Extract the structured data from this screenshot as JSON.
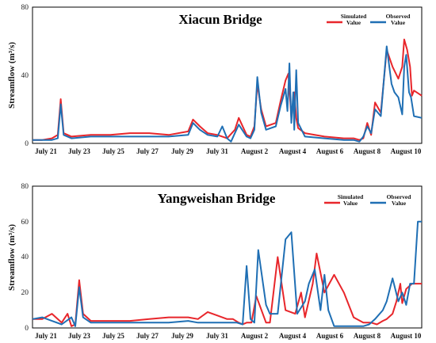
{
  "chart_data": [
    {
      "type": "line",
      "title": "Xiacun Bridge",
      "ylabel": "Streamflow (m³/s)",
      "xlabel": "",
      "ylim": [
        0,
        80
      ],
      "yticks": [
        "0",
        "40",
        "80"
      ],
      "xlim": [
        21,
        41
      ],
      "x_tick_labels": [
        "July 21",
        "July 23",
        "July 25",
        "July 27",
        "July 29",
        "July 31",
        "August 2",
        "August 4",
        "August 6",
        "August 8",
        "August 10"
      ],
      "legend_position": "top-right",
      "grid": false,
      "series": [
        {
          "name": "Simulated Value",
          "color": "#e8262b",
          "x": [
            21,
            21.5,
            22,
            22.3,
            22.45,
            22.6,
            23,
            24,
            25,
            26,
            27,
            28,
            29,
            29.25,
            29.6,
            30,
            30.5,
            31,
            31.4,
            31.6,
            32,
            32.2,
            32.4,
            32.55,
            32.75,
            33,
            33.5,
            33.75,
            34,
            34.15,
            34.3,
            34.45,
            34.55,
            34.65,
            35,
            36,
            37,
            37.5,
            37.8,
            38,
            38.2,
            38.4,
            38.6,
            38.9,
            39.2,
            39.5,
            39.8,
            40,
            40.1,
            40.25,
            40.4,
            40.5,
            40.6,
            41
          ],
          "y": [
            2,
            2,
            3,
            5,
            26,
            6,
            4,
            5,
            5,
            6,
            6,
            5,
            7,
            14,
            10,
            6,
            5,
            3,
            8,
            15,
            5,
            4,
            10,
            35,
            20,
            10,
            12,
            25,
            37,
            41,
            15,
            30,
            15,
            9,
            6,
            4,
            3,
            3,
            2,
            3,
            12,
            5,
            24,
            18,
            55,
            45,
            38,
            45,
            61,
            55,
            45,
            28,
            31,
            28
          ]
        },
        {
          "name": "Observed Value",
          "color": "#1f6fb4",
          "x": [
            21,
            21.5,
            22,
            22.3,
            22.45,
            22.6,
            23,
            24,
            25,
            26,
            27,
            28,
            29,
            29.25,
            29.6,
            30,
            30.5,
            30.75,
            31,
            31.2,
            31.6,
            32,
            32.2,
            32.4,
            32.55,
            32.75,
            33,
            33.5,
            33.75,
            34,
            34.1,
            34.2,
            34.3,
            34.4,
            34.45,
            34.55,
            34.65,
            35,
            36,
            37,
            37.5,
            37.8,
            38,
            38.2,
            38.4,
            38.6,
            38.9,
            39.2,
            39.45,
            39.6,
            39.8,
            40,
            40.1,
            40.2,
            40.35,
            40.45,
            40.6,
            41
          ],
          "y": [
            2,
            2,
            2,
            3,
            23,
            5,
            3,
            4,
            4,
            4,
            4,
            4,
            5,
            12,
            8,
            5,
            4,
            10,
            3,
            1,
            11,
            4,
            3,
            8,
            39,
            18,
            8,
            10,
            22,
            32,
            19,
            47,
            12,
            30,
            8,
            43,
            12,
            4,
            3,
            2,
            2,
            1,
            4,
            10,
            6,
            20,
            16,
            57,
            35,
            30,
            27,
            17,
            45,
            52,
            30,
            27,
            16,
            15
          ]
        }
      ]
    },
    {
      "type": "line",
      "title": "Yangweishan Bridge",
      "ylabel": "Streamflow (m³/s)",
      "xlabel": "",
      "ylim": [
        0,
        80
      ],
      "yticks": [
        "0",
        "20",
        "40",
        "60",
        "80"
      ],
      "xlim": [
        21,
        41
      ],
      "x_tick_labels": [
        "July 21",
        "July 23",
        "July 25",
        "July 27",
        "July 29",
        "July 31",
        "August 2",
        "August 4",
        "August 6",
        "August 8",
        "August 10"
      ],
      "legend_position": "top-right",
      "grid": false,
      "series": [
        {
          "name": "Simulated Value",
          "color": "#e8262b",
          "x": [
            21,
            21.5,
            22,
            22.5,
            22.8,
            23,
            23.2,
            23.4,
            23.6,
            24,
            25,
            26,
            27,
            28,
            29,
            29.5,
            30,
            30.5,
            31,
            31.3,
            31.6,
            31.8,
            32,
            32.25,
            32.5,
            33,
            33.2,
            33.6,
            34,
            34.5,
            34.8,
            35,
            35.4,
            35.6,
            36,
            36.5,
            37,
            37.5,
            38,
            38.4,
            38.7,
            39,
            39.2,
            39.5,
            39.7,
            39.9,
            40,
            40.2,
            40.5,
            41
          ],
          "y": [
            5,
            5,
            8,
            3,
            8,
            1,
            2,
            27,
            8,
            4,
            4,
            4,
            5,
            6,
            6,
            5,
            9,
            7,
            5,
            5,
            3,
            2,
            3,
            3,
            18,
            3,
            3,
            40,
            10,
            8,
            20,
            6,
            25,
            42,
            20,
            30,
            20,
            6,
            3,
            3,
            2,
            4,
            5,
            8,
            15,
            25,
            14,
            22,
            25,
            25
          ]
        },
        {
          "name": "Observed Value",
          "color": "#1f6fb4",
          "x": [
            21,
            21.5,
            22,
            22.5,
            23,
            23.2,
            23.4,
            23.6,
            24,
            25,
            26,
            27,
            28,
            29,
            29.5,
            30,
            30.5,
            31,
            31.5,
            31.8,
            32,
            32.2,
            32.4,
            32.6,
            33,
            33.2,
            33.6,
            34,
            34.3,
            34.6,
            35,
            35.2,
            35.5,
            35.8,
            36,
            36.2,
            36.5,
            37,
            37.5,
            38,
            38.3,
            38.6,
            39,
            39.2,
            39.5,
            39.8,
            40,
            40.2,
            40.4,
            40.6,
            40.8,
            41
          ],
          "y": [
            5,
            6,
            4,
            2,
            6,
            1,
            23,
            6,
            3,
            3,
            3,
            3,
            3,
            4,
            3,
            3,
            3,
            3,
            3,
            2,
            35,
            5,
            3,
            44,
            13,
            8,
            8,
            50,
            54,
            8,
            15,
            25,
            33,
            10,
            30,
            10,
            1,
            1,
            1,
            1,
            2,
            5,
            10,
            15,
            28,
            15,
            20,
            13,
            25,
            25,
            60,
            60
          ]
        }
      ]
    }
  ]
}
